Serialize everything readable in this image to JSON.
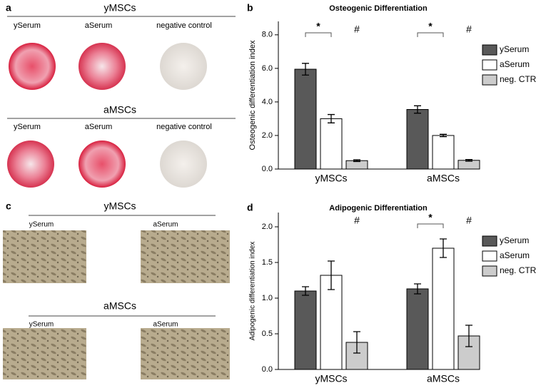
{
  "panels": {
    "a": {
      "label": "a",
      "groups": [
        {
          "title": "yMSCs",
          "columns": [
            "ySerum",
            "aSerum",
            "negative control"
          ]
        },
        {
          "title": "aMSCs",
          "columns": [
            "ySerum",
            "aSerum",
            "negative control"
          ]
        }
      ]
    },
    "c": {
      "label": "c",
      "groups": [
        {
          "title": "yMSCs",
          "columns": [
            "ySerum",
            "aSerum"
          ]
        },
        {
          "title": "aMSCs",
          "columns": [
            "ySerum",
            "aSerum"
          ]
        }
      ]
    }
  },
  "chart_data": [
    {
      "type": "bar",
      "label": "b",
      "title": "Osteogenic Differentiation",
      "ylabel": "Osteogenic differentiation index",
      "categories": [
        "yMSCs",
        "aMSCs"
      ],
      "series": [
        {
          "name": "ySerum",
          "color": "#595959",
          "values": [
            5.95,
            3.55
          ],
          "errors": [
            0.35,
            0.22
          ]
        },
        {
          "name": "aSerum",
          "color": "#ffffff",
          "values": [
            3.0,
            2.0
          ],
          "errors": [
            0.25,
            0.07
          ]
        },
        {
          "name": "neg. CTR",
          "color": "#cccccc",
          "values": [
            0.5,
            0.52
          ],
          "errors": [
            0.05,
            0.05
          ]
        }
      ],
      "ylim": [
        0,
        8.8
      ],
      "yticks": [
        {
          "value": 0,
          "label": "0.0"
        },
        {
          "value": 2,
          "label": "2.0"
        },
        {
          "value": 4,
          "label": "4.0"
        },
        {
          "value": 6,
          "label": "6.0"
        },
        {
          "value": 8,
          "label": "8.0"
        }
      ],
      "annotations": [
        {
          "text": "*",
          "category": "yMSCs",
          "bracket": true
        },
        {
          "text": "#",
          "category": "yMSCs",
          "bracket": false
        },
        {
          "text": "*",
          "category": "aMSCs",
          "bracket": true
        },
        {
          "text": "#",
          "category": "aMSCs",
          "bracket": false
        }
      ]
    },
    {
      "type": "bar",
      "label": "d",
      "title": "Adipogenic Differentiation",
      "ylabel": "Adipogenic differentiation index",
      "categories": [
        "yMSCs",
        "aMSCs"
      ],
      "series": [
        {
          "name": "ySerum",
          "color": "#595959",
          "values": [
            1.1,
            1.13
          ],
          "errors": [
            0.06,
            0.07
          ]
        },
        {
          "name": "aSerum",
          "color": "#ffffff",
          "values": [
            1.32,
            1.7
          ],
          "errors": [
            0.2,
            0.13
          ]
        },
        {
          "name": "neg. CTR",
          "color": "#cccccc",
          "values": [
            0.38,
            0.47
          ],
          "errors": [
            0.15,
            0.15
          ]
        }
      ],
      "ylim": [
        0,
        2.2
      ],
      "yticks": [
        {
          "value": 0,
          "label": "0.0"
        },
        {
          "value": 0.5,
          "label": "0.5"
        },
        {
          "value": 1,
          "label": "1.0"
        },
        {
          "value": 1.5,
          "label": "1.5"
        },
        {
          "value": 2,
          "label": "2.0"
        }
      ],
      "annotations": [
        {
          "text": "#",
          "category": "yMSCs",
          "bracket": false
        },
        {
          "text": "*",
          "category": "aMSCs",
          "bracket": true
        },
        {
          "text": "#",
          "category": "aMSCs",
          "bracket": false
        }
      ]
    }
  ]
}
